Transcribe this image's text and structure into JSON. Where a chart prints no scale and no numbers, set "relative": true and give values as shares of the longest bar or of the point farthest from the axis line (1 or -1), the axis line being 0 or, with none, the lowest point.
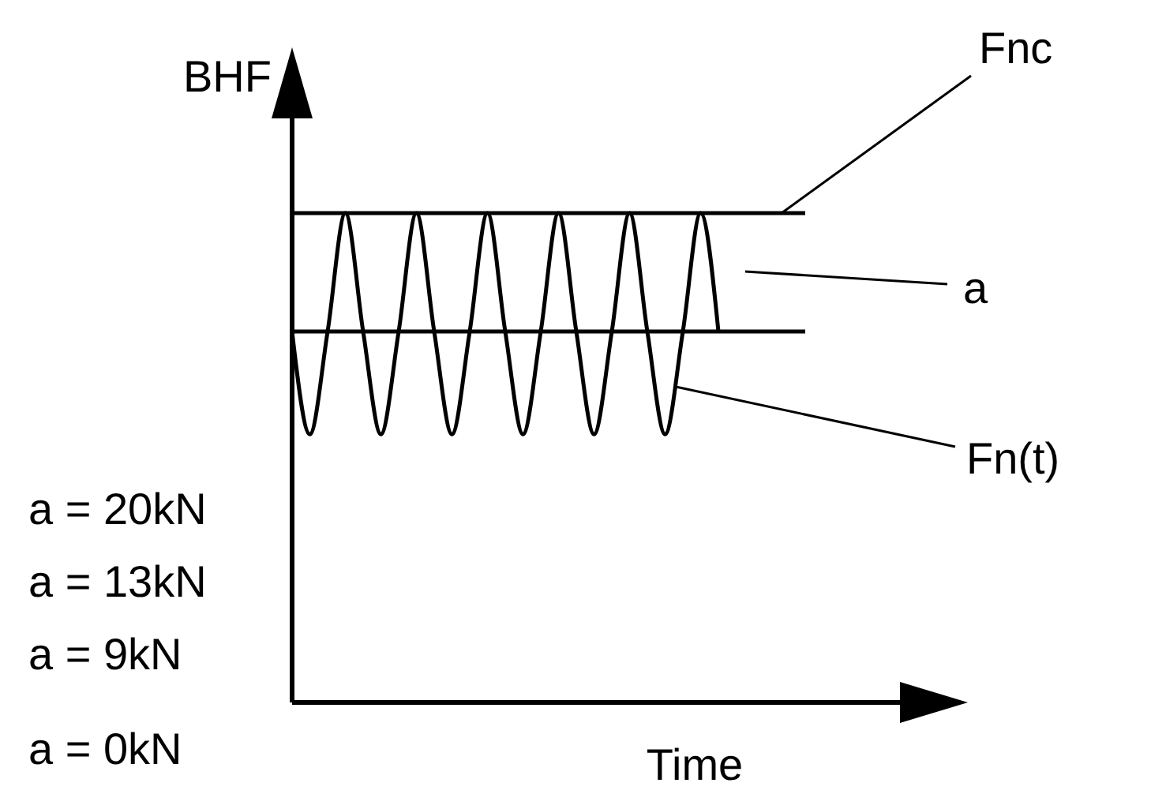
{
  "chart_data": {
    "type": "line",
    "relative": true,
    "ylabel": "BHF",
    "xlabel": "Time",
    "categories": [
      null,
      null,
      null,
      null,
      null,
      null,
      null,
      null,
      null,
      null,
      null,
      null,
      null,
      null,
      null,
      null,
      null,
      null,
      null,
      null,
      null,
      null,
      null,
      null,
      null
    ],
    "series": [
      {
        "name": "Fn(t)",
        "color": "#000000",
        "values": [
          0.758,
          0.548,
          0.758,
          1,
          0.758,
          0.548,
          0.758,
          1,
          0.758,
          0.548,
          0.758,
          1,
          0.758,
          0.548,
          0.758,
          1,
          0.758,
          0.548,
          0.758,
          1,
          0.758,
          0.548,
          0.758,
          1,
          0.758
        ]
      }
    ],
    "ref_lines": [
      {
        "axis": "y",
        "value": 1,
        "label": "Fnc",
        "color": "#000000"
      },
      {
        "axis": "y",
        "value": 0.758,
        "label": null,
        "color": "#000000"
      }
    ],
    "annotations": [
      "a",
      "a = 20kN",
      "a = 13kN",
      "a = 9kN",
      "a = 0kN"
    ],
    "marker": "none",
    "line_style": "solid"
  }
}
